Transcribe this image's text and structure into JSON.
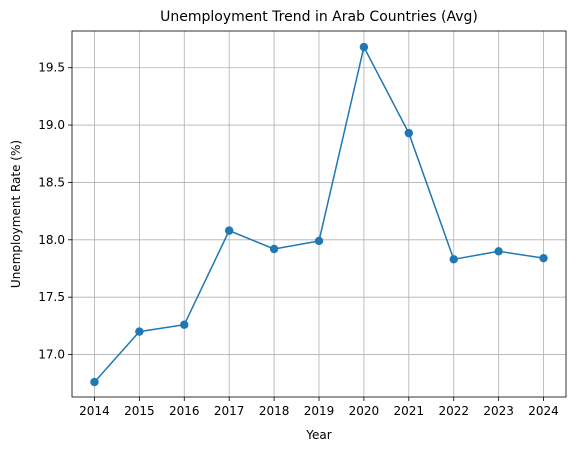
{
  "chart_data": {
    "type": "line",
    "title": "Unemployment Trend in Arab Countries (Avg)",
    "xlabel": "Year",
    "ylabel": "Unemployment Rate (%)",
    "x": [
      2014,
      2015,
      2016,
      2017,
      2018,
      2019,
      2020,
      2021,
      2022,
      2023,
      2024
    ],
    "series": [
      {
        "values": [
          16.76,
          17.2,
          17.26,
          18.08,
          17.92,
          17.99,
          19.68,
          18.93,
          17.83,
          17.9,
          17.84
        ],
        "color": "#1f77b4",
        "marker": "circle"
      }
    ],
    "xlim": [
      2013.5,
      2024.5
    ],
    "ylim": [
      16.63,
      19.82
    ],
    "yticks": [
      17.0,
      17.5,
      18.0,
      18.5,
      19.0,
      19.5
    ],
    "ytick_labels": [
      "17.0",
      "17.5",
      "18.0",
      "18.5",
      "19.0",
      "19.5"
    ],
    "grid": true,
    "legend": "none"
  }
}
